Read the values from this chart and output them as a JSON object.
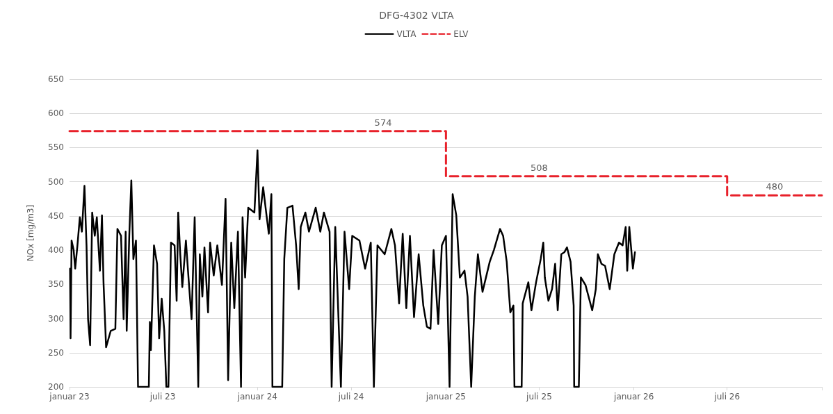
{
  "chart_data": {
    "type": "line",
    "title": "DFG-4302 VLTA",
    "ylabel": "NOx [mg/m3]",
    "xlim": [
      "2023-01-01",
      "2027-01-01"
    ],
    "xticks": [
      {
        "value": "2023-01-01",
        "label": "januar 23"
      },
      {
        "value": "2023-07-01",
        "label": "juli 23"
      },
      {
        "value": "2024-01-01",
        "label": "januar 24"
      },
      {
        "value": "2024-07-01",
        "label": "juli 24"
      },
      {
        "value": "2025-01-01",
        "label": "januar 25"
      },
      {
        "value": "2025-07-01",
        "label": "juli 25"
      },
      {
        "value": "2026-01-01",
        "label": "januar 26"
      },
      {
        "value": "2026-07-01",
        "label": "juli 26"
      },
      {
        "value": "2027-01-01",
        "label": null
      }
    ],
    "ylim": [
      200,
      650
    ],
    "yticks": [
      200,
      250,
      300,
      350,
      400,
      450,
      500,
      550,
      600,
      650
    ],
    "grid": "y",
    "legend": "top",
    "marker": "none",
    "series": [
      {
        "name": "VLTA",
        "type": "line",
        "color": "#000000",
        "line_style": "solid",
        "x": [
          "2023-01-02",
          "2023-01-03",
          "2023-01-05",
          "2023-01-09",
          "2023-01-12",
          "2023-01-16",
          "2023-01-21",
          "2023-01-25",
          "2023-01-30",
          "2023-02-03",
          "2023-02-06",
          "2023-02-10",
          "2023-02-14",
          "2023-02-19",
          "2023-02-23",
          "2023-03-01",
          "2023-03-05",
          "2023-03-08",
          "2023-03-13",
          "2023-03-22",
          "2023-03-31",
          "2023-04-04",
          "2023-04-11",
          "2023-04-16",
          "2023-04-20",
          "2023-04-22",
          "2023-04-27",
          "2023-05-01",
          "2023-05-05",
          "2023-05-10",
          "2023-05-14",
          "2023-06-04",
          "2023-06-06",
          "2023-06-08",
          "2023-06-14",
          "2023-06-20",
          "2023-06-24",
          "2023-06-29",
          "2023-07-04",
          "2023-07-08",
          "2023-07-12",
          "2023-07-17",
          "2023-07-24",
          "2023-07-28",
          "2023-07-31",
          "2023-08-04",
          "2023-08-08",
          "2023-08-15",
          "2023-08-20",
          "2023-08-26",
          "2023-09-01",
          "2023-09-08",
          "2023-09-11",
          "2023-09-16",
          "2023-09-20",
          "2023-09-27",
          "2023-10-01",
          "2023-10-08",
          "2023-10-15",
          "2023-10-24",
          "2023-10-31",
          "2023-11-05",
          "2023-11-11",
          "2023-11-17",
          "2023-11-24",
          "2023-11-30",
          "2023-12-03",
          "2023-12-08",
          "2023-12-14",
          "2023-12-26",
          "2024-01-01",
          "2024-01-05",
          "2024-01-12",
          "2024-01-19",
          "2024-01-23",
          "2024-01-28",
          "2024-01-30",
          "2024-02-18",
          "2024-02-22",
          "2024-02-28",
          "2024-03-09",
          "2024-03-16",
          "2024-03-21",
          "2024-03-25",
          "2024-04-03",
          "2024-04-10",
          "2024-04-23",
          "2024-05-02",
          "2024-05-09",
          "2024-05-20",
          "2024-05-24",
          "2024-05-31",
          "2024-06-11",
          "2024-06-18",
          "2024-06-27",
          "2024-07-03",
          "2024-07-17",
          "2024-07-28",
          "2024-08-08",
          "2024-08-14",
          "2024-08-21",
          "2024-09-04",
          "2024-09-17",
          "2024-09-24",
          "2024-10-02",
          "2024-10-09",
          "2024-10-16",
          "2024-10-23",
          "2024-10-31",
          "2024-11-09",
          "2024-11-18",
          "2024-11-25",
          "2024-12-02",
          "2024-12-08",
          "2024-12-17",
          "2024-12-24",
          "2025-01-01",
          "2025-01-08",
          "2025-01-14",
          "2025-01-21",
          "2025-01-28",
          "2025-02-06",
          "2025-02-12",
          "2025-02-19",
          "2025-02-26",
          "2025-03-04",
          "2025-03-13",
          "2025-03-27",
          "2025-04-04",
          "2025-04-16",
          "2025-04-22",
          "2025-04-29",
          "2025-05-06",
          "2025-05-12",
          "2025-05-14",
          "2025-05-28",
          "2025-05-30",
          "2025-06-10",
          "2025-06-16",
          "2025-06-25",
          "2025-07-04",
          "2025-07-09",
          "2025-07-12",
          "2025-07-19",
          "2025-07-26",
          "2025-08-01",
          "2025-08-06",
          "2025-08-13",
          "2025-08-19",
          "2025-08-24",
          "2025-08-31",
          "2025-09-06",
          "2025-09-07",
          "2025-09-16",
          "2025-09-20",
          "2025-09-29",
          "2025-10-12",
          "2025-10-19",
          "2025-10-23",
          "2025-10-30",
          "2025-11-06",
          "2025-11-15",
          "2025-11-24",
          "2025-12-03",
          "2025-12-10",
          "2025-12-16",
          "2025-12-19",
          "2025-12-23",
          "2025-12-30",
          "2026-01-03"
        ],
        "values": [
          373,
          271,
          414,
          400,
          373,
          404,
          448,
          427,
          494,
          407,
          299,
          261,
          455,
          421,
          448,
          370,
          451,
          353,
          258,
          282,
          285,
          431,
          421,
          299,
          427,
          282,
          421,
          502,
          387,
          414,
          200,
          200,
          295,
          254,
          407,
          380,
          271,
          329,
          282,
          200,
          200,
          411,
          407,
          326,
          455,
          394,
          346,
          414,
          360,
          299,
          448,
          200,
          394,
          332,
          404,
          309,
          411,
          363,
          407,
          349,
          475,
          210,
          411,
          315,
          427,
          200,
          448,
          360,
          462,
          455,
          546,
          445,
          492,
          448,
          424,
          482,
          200,
          200,
          387,
          462,
          465,
          407,
          343,
          434,
          455,
          427,
          462,
          427,
          455,
          427,
          200,
          434,
          200,
          427,
          343,
          421,
          414,
          373,
          411,
          200,
          407,
          394,
          431,
          407,
          322,
          424,
          315,
          421,
          302,
          394,
          319,
          288,
          285,
          400,
          292,
          407,
          421,
          200,
          482,
          451,
          360,
          370,
          332,
          200,
          332,
          394,
          339,
          383,
          400,
          431,
          421,
          383,
          309,
          319,
          200,
          200,
          322,
          353,
          312,
          353,
          387,
          411,
          360,
          326,
          343,
          380,
          312,
          394,
          397,
          404,
          383,
          319,
          200,
          200,
          360,
          349,
          312,
          343,
          394,
          380,
          377,
          343,
          394,
          411,
          407,
          434,
          370,
          434,
          373,
          397
        ]
      },
      {
        "name": "ELV",
        "type": "step",
        "color": "#e8202a",
        "line_style": "dashed",
        "x": [
          "2023-01-01",
          "2025-01-01",
          "2026-07-01",
          "2027-01-01"
        ],
        "values": [
          574,
          508,
          480,
          480
        ]
      }
    ],
    "annotations": [
      {
        "text": "574",
        "x": "2024-09-01",
        "y": 574
      },
      {
        "text": "508",
        "x": "2025-07-01",
        "y": 508
      },
      {
        "text": "480",
        "x": "2026-10-01",
        "y": 480
      }
    ]
  }
}
